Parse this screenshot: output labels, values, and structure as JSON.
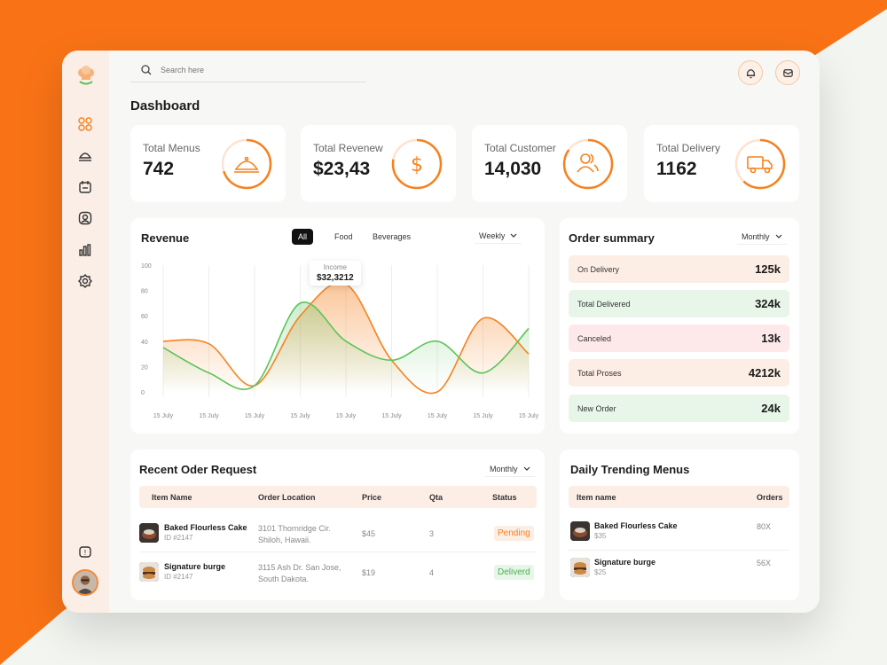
{
  "colors": {
    "accent": "#f5821f",
    "green": "#5cc35a",
    "peach_bg": "#fdeee5",
    "green_bg": "#e7f6e8",
    "pink_bg": "#fde9ea"
  },
  "search": {
    "placeholder": "Search here"
  },
  "page_title": "Dashboard",
  "nav": [
    "grid-icon",
    "dish-icon",
    "calendar-icon",
    "user-icon",
    "chart-icon",
    "gear-icon"
  ],
  "stats": [
    {
      "label": "Total Menus",
      "value": "742",
      "icon": "cloche-icon",
      "progress": 0.7
    },
    {
      "label": "Total Revenew",
      "value": "$23,43",
      "icon": "dollar-icon",
      "progress": 0.78
    },
    {
      "label": "Total Customer",
      "value": "14,030",
      "icon": "customers-icon",
      "progress": 0.85
    },
    {
      "label": "Total Delivery",
      "value": "1162",
      "icon": "truck-icon",
      "progress": 0.62
    }
  ],
  "revenue": {
    "title": "Revenue",
    "filters": [
      "All",
      "Food",
      "Beverages"
    ],
    "period": "Weekly",
    "tooltip_label": "Income",
    "tooltip_value": "$32,3212"
  },
  "chart_data": {
    "type": "area",
    "title": "Revenue",
    "y_ticks": [
      0,
      20,
      40,
      60,
      80,
      100
    ],
    "ylim": [
      0,
      100
    ],
    "categories": [
      "15 July",
      "15 July",
      "15 July",
      "15 July",
      "15 July",
      "15 July",
      "15 July",
      "15 July",
      "15 July"
    ],
    "series": [
      {
        "color": "#f5821f",
        "values": [
          40,
          38,
          5,
          60,
          85,
          25,
          0,
          58,
          30
        ]
      },
      {
        "color": "#5cc35a",
        "values": [
          35,
          15,
          5,
          70,
          40,
          25,
          40,
          15,
          50
        ]
      }
    ]
  },
  "order_summary": {
    "title": "Order summary",
    "period": "Monthly",
    "rows": [
      {
        "label": "On Delivery",
        "value": "125k",
        "bg": "#fdeee5"
      },
      {
        "label": "Total Delivered",
        "value": "324k",
        "bg": "#e7f6e8"
      },
      {
        "label": "Canceled",
        "value": "13k",
        "bg": "#fde9ea"
      },
      {
        "label": "Total Proses",
        "value": "4212k",
        "bg": "#fdeee5"
      },
      {
        "label": "New Order",
        "value": "24k",
        "bg": "#e7f6e8"
      }
    ]
  },
  "recent": {
    "title": "Recent Oder Request",
    "period": "Monthly",
    "headers": [
      "Item Name",
      "Order Location",
      "Price",
      "Qta",
      "Status"
    ],
    "rows": [
      {
        "name": "Baked Flourless Cake",
        "id": "ID #2147",
        "loc1": "3101 Thornridge Cir.",
        "loc2": "Shiloh, Hawaii.",
        "price": "$45",
        "qty": "3",
        "status": "Pending"
      },
      {
        "name": "Signature burge",
        "id": "ID #2147",
        "loc1": "3115 Ash Dr. San Jose,",
        "loc2": "South Dakota.",
        "price": "$19",
        "qty": "4",
        "status": "Deliverd"
      }
    ]
  },
  "trending": {
    "title": "Daily Trending Menus",
    "headers": [
      "Item name",
      "Orders"
    ],
    "rows": [
      {
        "name": "Baked Flourless Cake",
        "price": "$35",
        "orders": "80X"
      },
      {
        "name": "Signature burge",
        "price": "$25",
        "orders": "56X"
      }
    ]
  }
}
